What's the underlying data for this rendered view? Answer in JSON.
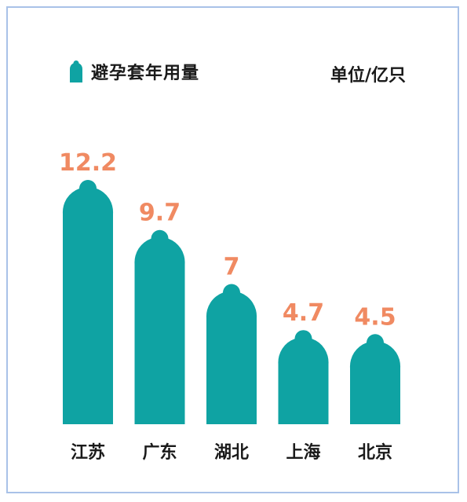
{
  "legend": {
    "label": "避孕套年用量",
    "icon": "condom-icon"
  },
  "unit": "单位/亿只",
  "colors": {
    "bar": "#0fa3a3",
    "value_label": "#f08a62",
    "border": "#a9c2e8"
  },
  "chart_data": {
    "type": "bar",
    "categories": [
      "江苏",
      "广东",
      "湖北",
      "上海",
      "北京"
    ],
    "values": [
      12.2,
      9.7,
      7,
      4.7,
      4.5
    ],
    "value_labels": [
      "12.2",
      "9.7",
      "7",
      "4.7",
      "4.5"
    ],
    "ylabel": "单位/亿只",
    "legend": [
      "避孕套年用量"
    ],
    "legend_position": "top-left",
    "grid": false,
    "ylim": [
      0,
      12.2
    ]
  }
}
